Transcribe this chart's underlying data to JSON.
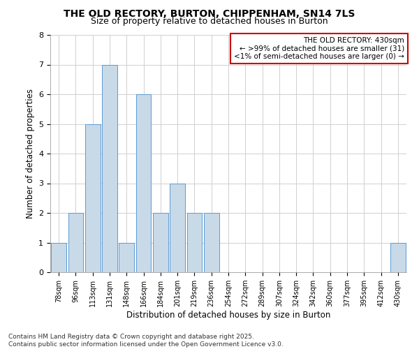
{
  "title_line1": "THE OLD RECTORY, BURTON, CHIPPENHAM, SN14 7LS",
  "title_line2": "Size of property relative to detached houses in Burton",
  "categories": [
    "78sqm",
    "96sqm",
    "113sqm",
    "131sqm",
    "148sqm",
    "166sqm",
    "184sqm",
    "201sqm",
    "219sqm",
    "236sqm",
    "254sqm",
    "272sqm",
    "289sqm",
    "307sqm",
    "324sqm",
    "342sqm",
    "360sqm",
    "377sqm",
    "395sqm",
    "412sqm",
    "430sqm"
  ],
  "values": [
    1,
    2,
    5,
    7,
    1,
    6,
    2,
    3,
    2,
    2,
    0,
    0,
    0,
    0,
    0,
    0,
    0,
    0,
    0,
    0,
    1
  ],
  "bar_color": "#c8d9e8",
  "bar_edge_color": "#5b9bd5",
  "xlabel": "Distribution of detached houses by size in Burton",
  "ylabel": "Number of detached properties",
  "ylim": [
    0,
    8
  ],
  "yticks": [
    0,
    1,
    2,
    3,
    4,
    5,
    6,
    7,
    8
  ],
  "annotation_box_title": "THE OLD RECTORY: 430sqm",
  "annotation_line1": "← >99% of detached houses are smaller (31)",
  "annotation_line2": "<1% of semi-detached houses are larger (0) →",
  "annotation_box_color": "#ffffff",
  "annotation_box_edge_color": "#cc0000",
  "footer_line1": "Contains HM Land Registry data © Crown copyright and database right 2025.",
  "footer_line2": "Contains public sector information licensed under the Open Government Licence v3.0.",
  "background_color": "#ffffff",
  "grid_color": "#d0d0d0",
  "title_fontsize": 10,
  "subtitle_fontsize": 9,
  "axis_label_fontsize": 8.5,
  "tick_fontsize": 7,
  "annotation_fontsize": 7.5,
  "footer_fontsize": 6.5
}
